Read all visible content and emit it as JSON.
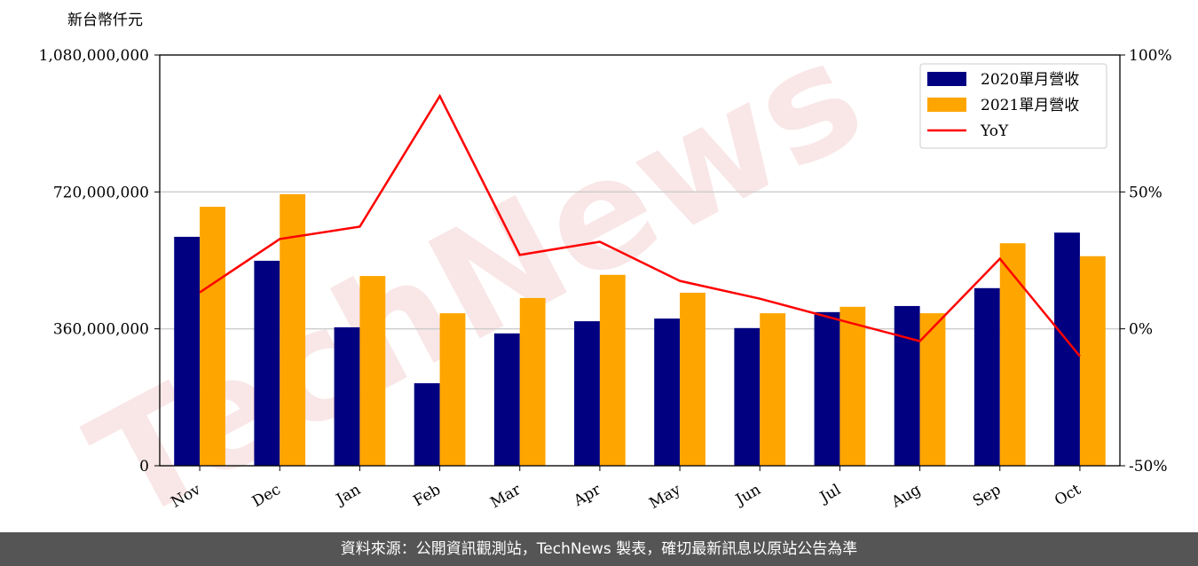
{
  "chart_data": {
    "type": "bar",
    "y_label": "新台幣仟元",
    "watermark": "TechNews",
    "categories": [
      "Nov",
      "Dec",
      "Jan",
      "Feb",
      "Mar",
      "Apr",
      "May",
      "Jun",
      "Jul",
      "Aug",
      "Sep",
      "Oct"
    ],
    "series": [
      {
        "name": "2020單月營收",
        "color": "#000080",
        "values": [
          602000000,
          539000000,
          364000000,
          217000000,
          348000000,
          380000000,
          387000000,
          362000000,
          404000000,
          420000000,
          467000000,
          613000000
        ]
      },
      {
        "name": "2021單月營收",
        "color": "#ffa500",
        "values": [
          681000000,
          714000000,
          499000000,
          401000000,
          441000000,
          502000000,
          455000000,
          401000000,
          418000000,
          401000000,
          585000000,
          551000000
        ]
      },
      {
        "name": "YoY",
        "color": "#ff0000",
        "type": "line",
        "axis": "y2",
        "values": [
          13.3,
          32.8,
          37.3,
          85,
          27,
          31.8,
          17.5,
          11,
          3.2,
          -4.5,
          25.6,
          -10
        ]
      }
    ],
    "ylim": [
      0,
      1080000000
    ],
    "yticks": [
      0,
      {
        "value": 360000000,
        "label": "360,000,000"
      },
      {
        "value": 720000000,
        "label": "720,000,000"
      },
      {
        "value": 1080000000,
        "label": "1,080,000,000"
      }
    ],
    "y2lim": [
      -50,
      100
    ],
    "y2ticks": [
      {
        "value": -50,
        "label": "-50%"
      },
      {
        "value": 0,
        "label": "0%"
      },
      {
        "value": 50,
        "label": "50%"
      },
      {
        "value": 100,
        "label": "100%"
      }
    ],
    "grid": true,
    "legend": "upper right"
  },
  "footer": "資料來源：公開資訊觀測站，TechNews 製表，確切最新訊息以原站公告為準"
}
